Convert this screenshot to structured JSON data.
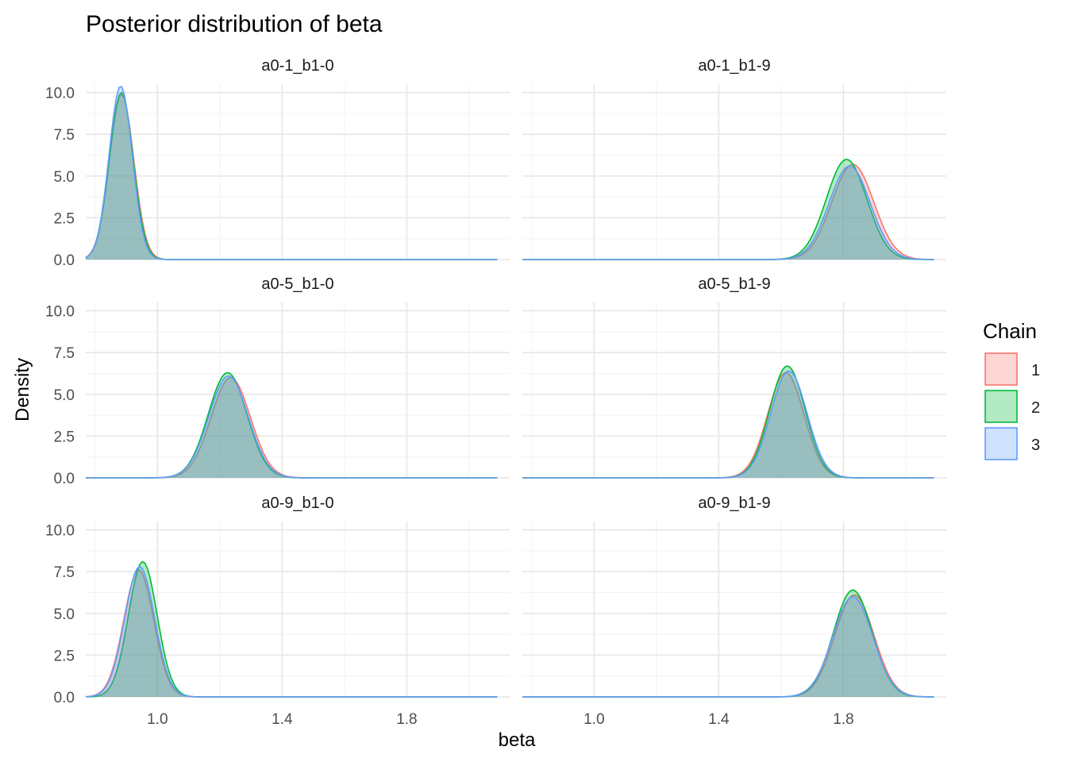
{
  "chart_data": {
    "type": "area",
    "title": "Posterior distribution of beta",
    "xlabel": "beta",
    "ylabel": "Density",
    "xlim": [
      0.77,
      2.13
    ],
    "ylim": [
      0,
      10.5
    ],
    "x_ticks": [
      "1.0",
      "1.4",
      "1.8"
    ],
    "y_ticks": [
      "0.0",
      "2.5",
      "5.0",
      "7.5",
      "10.0"
    ],
    "grid": true,
    "legend": {
      "title": "Chain",
      "position": "right",
      "entries": [
        {
          "label": "1",
          "color": "#F8766D"
        },
        {
          "label": "2",
          "color": "#00BA38"
        },
        {
          "label": "3",
          "color": "#619CFF"
        }
      ]
    },
    "x_range": [
      0.77,
      2.09
    ],
    "panels": [
      {
        "label": "a0-1_b1-0",
        "series": [
          {
            "chain": "1",
            "mean": 0.885,
            "sd": 0.039,
            "peak": 9.9
          },
          {
            "chain": "2",
            "mean": 0.884,
            "sd": 0.038,
            "peak": 10.0
          },
          {
            "chain": "3",
            "mean": 0.882,
            "sd": 0.037,
            "peak": 10.4
          }
        ]
      },
      {
        "label": "a0-1_b1-9",
        "series": [
          {
            "chain": "1",
            "mean": 1.83,
            "sd": 0.067,
            "peak": 5.7
          },
          {
            "chain": "2",
            "mean": 1.81,
            "sd": 0.065,
            "peak": 6.0
          },
          {
            "chain": "3",
            "mean": 1.82,
            "sd": 0.066,
            "peak": 5.6
          }
        ]
      },
      {
        "label": "a0-5_b1-0",
        "series": [
          {
            "chain": "1",
            "mean": 1.235,
            "sd": 0.063,
            "peak": 6.0
          },
          {
            "chain": "2",
            "mean": 1.225,
            "sd": 0.062,
            "peak": 6.3
          },
          {
            "chain": "3",
            "mean": 1.228,
            "sd": 0.063,
            "peak": 6.1
          }
        ]
      },
      {
        "label": "a0-5_b1-9",
        "series": [
          {
            "chain": "1",
            "mean": 1.615,
            "sd": 0.058,
            "peak": 6.3
          },
          {
            "chain": "2",
            "mean": 1.62,
            "sd": 0.057,
            "peak": 6.7
          },
          {
            "chain": "3",
            "mean": 1.625,
            "sd": 0.058,
            "peak": 6.4
          }
        ]
      },
      {
        "label": "a0-9_b1-0",
        "series": [
          {
            "chain": "1",
            "mean": 0.94,
            "sd": 0.048,
            "peak": 7.6
          },
          {
            "chain": "2",
            "mean": 0.953,
            "sd": 0.046,
            "peak": 8.1
          },
          {
            "chain": "3",
            "mean": 0.943,
            "sd": 0.048,
            "peak": 7.8
          }
        ]
      },
      {
        "label": "a0-9_b1-9",
        "series": [
          {
            "chain": "1",
            "mean": 1.835,
            "sd": 0.063,
            "peak": 6.1
          },
          {
            "chain": "2",
            "mean": 1.83,
            "sd": 0.062,
            "peak": 6.4
          },
          {
            "chain": "3",
            "mean": 1.83,
            "sd": 0.064,
            "peak": 6.0
          }
        ]
      }
    ]
  }
}
